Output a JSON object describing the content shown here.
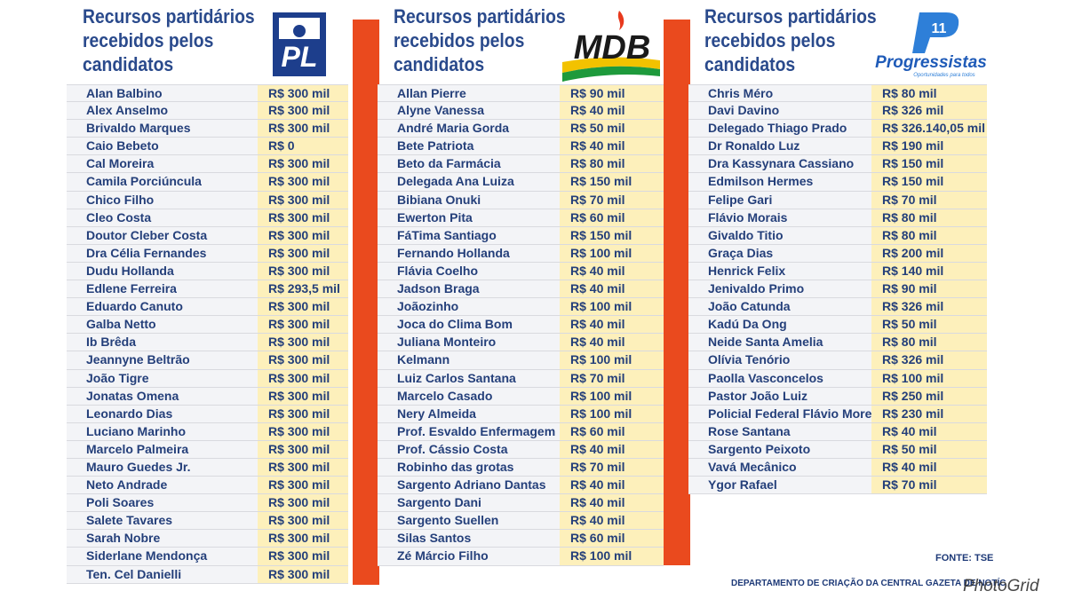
{
  "pl": {
    "heading": [
      "Recursos partidários",
      "recebidos pelos",
      "candidatos"
    ],
    "logo_text": "PL",
    "rows": [
      {
        "name": "Alan Balbino",
        "value": "R$ 300 mil"
      },
      {
        "name": "Alex Anselmo",
        "value": "R$ 300 mil"
      },
      {
        "name": "Brivaldo Marques",
        "value": "R$ 300 mil"
      },
      {
        "name": "Caio Bebeto",
        "value": "R$ 0"
      },
      {
        "name": "Cal Moreira",
        "value": "R$ 300 mil"
      },
      {
        "name": "Camila Porciúncula",
        "value": "R$ 300 mil"
      },
      {
        "name": "Chico Filho",
        "value": "R$ 300 mil"
      },
      {
        "name": "Cleo Costa",
        "value": "R$ 300 mil"
      },
      {
        "name": "Doutor Cleber Costa",
        "value": "R$ 300 mil"
      },
      {
        "name": "Dra Célia Fernandes",
        "value": "R$ 300 mil"
      },
      {
        "name": "Dudu Hollanda",
        "value": "R$ 300 mil"
      },
      {
        "name": "Edlene Ferreira",
        "value": "R$ 293,5 mil"
      },
      {
        "name": "Eduardo Canuto",
        "value": "R$ 300 mil"
      },
      {
        "name": "Galba Netto",
        "value": "R$ 300 mil"
      },
      {
        "name": "Ib Brêda",
        "value": "R$ 300 mil"
      },
      {
        "name": "Jeannyne Beltrão",
        "value": "R$ 300 mil"
      },
      {
        "name": "João Tigre",
        "value": "R$ 300 mil"
      },
      {
        "name": "Jonatas Omena",
        "value": "R$ 300 mil"
      },
      {
        "name": "Leonardo Dias",
        "value": "R$ 300 mil"
      },
      {
        "name": "Luciano Marinho",
        "value": "R$ 300 mil"
      },
      {
        "name": "Marcelo Palmeira",
        "value": "R$ 300 mil"
      },
      {
        "name": "Mauro Guedes Jr.",
        "value": "R$ 300 mil"
      },
      {
        "name": "Neto Andrade",
        "value": "R$ 300 mil"
      },
      {
        "name": "Poli Soares",
        "value": "R$ 300 mil"
      },
      {
        "name": "Salete Tavares",
        "value": "R$ 300 mil"
      },
      {
        "name": "Sarah Nobre",
        "value": "R$ 300 mil"
      },
      {
        "name": "Siderlane Mendonça",
        "value": "R$ 300 mil"
      },
      {
        "name": "Ten. Cel Danielli",
        "value": "R$ 300 mil"
      }
    ]
  },
  "mdb": {
    "heading": [
      "Recursos partidários",
      "recebidos pelos",
      "candidatos"
    ],
    "logo_text": "MDB",
    "rows": [
      {
        "name": "Allan Pierre",
        "value": "R$ 90 mil"
      },
      {
        "name": "Alyne Vanessa",
        "value": "R$ 40 mil"
      },
      {
        "name": "André Maria Gorda",
        "value": "R$ 50 mil"
      },
      {
        "name": "Bete Patriota",
        "value": "R$ 40 mil"
      },
      {
        "name": "Beto da Farmácia",
        "value": "R$ 80 mil"
      },
      {
        "name": "Delegada Ana Luiza",
        "value": "R$ 150 mil"
      },
      {
        "name": "Bibiana Onuki",
        "value": "R$ 70 mil"
      },
      {
        "name": "Ewerton Pita",
        "value": "R$ 60 mil"
      },
      {
        "name": "FáTima Santiago",
        "value": "R$ 150 mil"
      },
      {
        "name": "Fernando Hollanda",
        "value": "R$ 100 mil"
      },
      {
        "name": "Flávia Coelho",
        "value": "R$ 40 mil"
      },
      {
        "name": "Jadson Braga",
        "value": "R$ 40 mil"
      },
      {
        "name": "Joãozinho",
        "value": "R$ 100 mil"
      },
      {
        "name": "Joca do Clima Bom",
        "value": "R$ 40 mil"
      },
      {
        "name": "Juliana Monteiro",
        "value": "R$ 40 mil"
      },
      {
        "name": "Kelmann",
        "value": "R$ 100 mil"
      },
      {
        "name": "Luiz Carlos Santana",
        "value": "R$ 70 mil"
      },
      {
        "name": "Marcelo Casado",
        "value": "R$ 100 mil"
      },
      {
        "name": "Nery Almeida",
        "value": "R$ 100 mil"
      },
      {
        "name": "Prof. Esvaldo Enfermagem",
        "value": "R$ 60 mil"
      },
      {
        "name": "Prof. Cássio Costa",
        "value": "R$ 40 mil"
      },
      {
        "name": "Robinho das grotas",
        "value": "R$ 70 mil"
      },
      {
        "name": "Sargento Adriano Dantas",
        "value": "R$ 40 mil"
      },
      {
        "name": "Sargento Dani",
        "value": "R$ 40 mil"
      },
      {
        "name": "Sargento Suellen",
        "value": "R$ 40 mil"
      },
      {
        "name": "Silas Santos",
        "value": "R$ 60 mil"
      },
      {
        "name": "Zé Márcio Filho",
        "value": "R$ 100 mil"
      }
    ]
  },
  "pp": {
    "heading": [
      "Recursos partidários",
      "recebidos pelos",
      "candidatos"
    ],
    "logo_number": "11",
    "logo_text": "Progressistas",
    "logo_tagline": "Oportunidades para todos",
    "rows": [
      {
        "name": "Chris Méro",
        "value": "R$ 80 mil"
      },
      {
        "name": "Davi Davino",
        "value": "R$ 326 mil"
      },
      {
        "name": "Delegado Thiago Prado",
        "value": "R$ 326.140,05 mil"
      },
      {
        "name": "Dr Ronaldo Luz",
        "value": "R$ 190 mil"
      },
      {
        "name": "Dra Kassynara Cassiano",
        "value": "R$ 150 mil"
      },
      {
        "name": "Edmilson Hermes",
        "value": "R$ 150 mil"
      },
      {
        "name": "Felipe Gari",
        "value": "R$ 70 mil"
      },
      {
        "name": "Flávio Morais",
        "value": "R$ 80 mil"
      },
      {
        "name": "Givaldo Titio",
        "value": "R$ 80 mil"
      },
      {
        "name": "Graça Dias",
        "value": "R$ 200 mil"
      },
      {
        "name": "Henrick Felix",
        "value": "R$ 140 mil"
      },
      {
        "name": "Jenivaldo Primo",
        "value": "R$ 90 mil"
      },
      {
        "name": "João Catunda",
        "value": "R$ 326 mil"
      },
      {
        "name": "Kadú Da Ong",
        "value": "R$ 50 mil"
      },
      {
        "name": "Neide Santa Amelia",
        "value": "R$ 80 mil"
      },
      {
        "name": "Olívia Tenório",
        "value": "R$ 326 mil"
      },
      {
        "name": "Paolla Vasconcelos",
        "value": "R$ 100 mil"
      },
      {
        "name": "Pastor João Luiz",
        "value": "R$ 250 mil"
      },
      {
        "name": "Policial Federal Flávio Moreno",
        "value": "R$ 230 mil"
      },
      {
        "name": "Rose Santana",
        "value": "R$ 40 mil"
      },
      {
        "name": "Sargento Peixoto",
        "value": "R$ 50 mil"
      },
      {
        "name": "Vavá Mecânico",
        "value": "R$ 40 mil"
      },
      {
        "name": "Ygor Rafael",
        "value": "R$ 70 mil"
      }
    ]
  },
  "footer": {
    "source": "FONTE: TSE",
    "credit": "DEPARTAMENTO DE CRIAÇÃO DA CENTRAL GAZETA DE NOTÍC"
  },
  "watermark": "PhotoGrid",
  "colors": {
    "heading": "#2a4a8c",
    "value_bg": "#fdf0bb",
    "separator": "#ea4a1e",
    "pl_blue": "#1d3e8c"
  }
}
